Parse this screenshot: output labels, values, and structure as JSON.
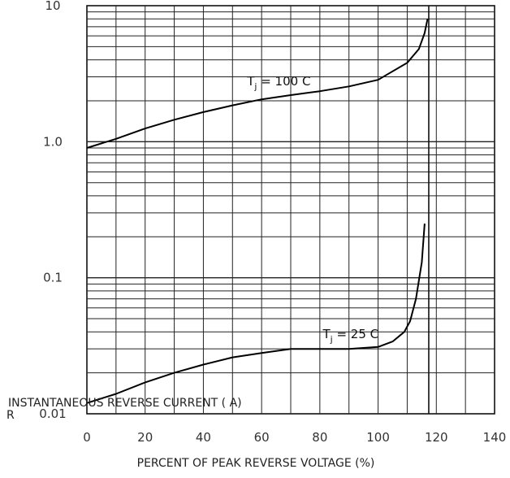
{
  "chart_data": {
    "type": "line",
    "title": "",
    "xlabel": "PERCENT OF PEAK REVERSE VOLTAGE (%)",
    "ylabel": "INSTANTANEOUS REVERSE CURRENT ( A)",
    "ylabel_prefix": "R",
    "yscale": "log",
    "xlim": [
      0,
      140
    ],
    "ylim": [
      0.01,
      10
    ],
    "grid": true,
    "x_ticks": [
      "0",
      "20",
      "40",
      "60",
      "80",
      "100",
      "120",
      "140"
    ],
    "y_ticks": [
      "10",
      "1.0",
      "0.1",
      "0.01"
    ],
    "series": [
      {
        "name": "",
        "label_main": "T",
        "label_sub": "j",
        "label_rest": " = 100 C",
        "x": [
          0,
          10,
          20,
          30,
          40,
          50,
          60,
          70,
          80,
          90,
          100,
          104,
          110,
          114,
          116,
          117
        ],
        "y": [
          0.9,
          1.05,
          1.25,
          1.45,
          1.65,
          1.85,
          2.05,
          2.2,
          2.35,
          2.55,
          2.85,
          3.2,
          3.8,
          4.8,
          6.3,
          8.0
        ]
      },
      {
        "name": "",
        "label_main": "T",
        "label_sub": "j",
        "label_rest": " = 25 C",
        "x": [
          0,
          10,
          20,
          30,
          40,
          50,
          60,
          70,
          80,
          90,
          100,
          105,
          109,
          111,
          113,
          115,
          116
        ],
        "y": [
          0.012,
          0.014,
          0.017,
          0.02,
          0.023,
          0.026,
          0.028,
          0.03,
          0.03,
          0.03,
          0.031,
          0.034,
          0.04,
          0.048,
          0.07,
          0.13,
          0.25
        ]
      }
    ],
    "vertical_edge_x": 117.4
  }
}
